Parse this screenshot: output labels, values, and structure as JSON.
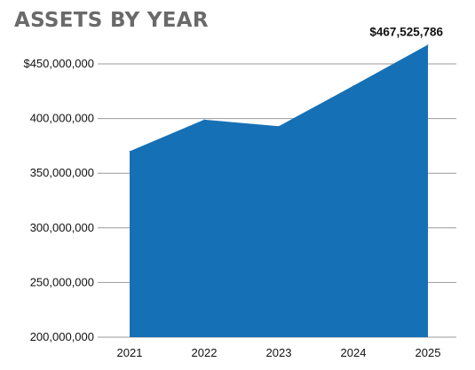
{
  "chart_data": {
    "type": "area",
    "title": "ASSETS BY YEAR",
    "categories": [
      "2021",
      "2022",
      "2023",
      "2024",
      "2025"
    ],
    "values": [
      370000000,
      399000000,
      393000000,
      430000000,
      467525786
    ],
    "ylim": [
      200000000,
      450000000
    ],
    "yticks": [
      {
        "value": 450000000,
        "label": "$450,000,000"
      },
      {
        "value": 400000000,
        "label": "400,000,000"
      },
      {
        "value": 350000000,
        "label": "350,000,000"
      },
      {
        "value": 300000000,
        "label": "300,000,000"
      },
      {
        "value": 250000000,
        "label": "250,000,000"
      },
      {
        "value": 200000000,
        "label": "200,000,000"
      }
    ],
    "annotation": {
      "label": "$467,525,786",
      "category": "2025"
    },
    "fill_color": "#1670b5",
    "grid": true,
    "legend": "none"
  }
}
